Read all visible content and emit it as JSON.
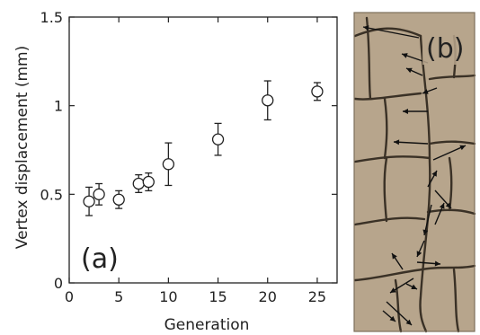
{
  "figure": {
    "panel_a_label": "(a)",
    "panel_b_label": "(b)",
    "photo_colors": {
      "background": "#b7a58c",
      "crack": "#3a3126",
      "frame": "#7d6e5b"
    }
  },
  "chart_data": {
    "type": "scatter",
    "title": "",
    "xlabel": "Generation",
    "ylabel": "Vertex displacement (mm)",
    "xlim": [
      0,
      27
    ],
    "ylim": [
      0,
      1.5
    ],
    "xticks": [
      0,
      5,
      10,
      15,
      20,
      25
    ],
    "yticks": [
      0,
      0.5,
      1,
      1.5
    ],
    "xtick_labels": [
      "0",
      "5",
      "10",
      "15",
      "20",
      "25"
    ],
    "ytick_labels": [
      "0",
      "0.5",
      "1",
      "1.5"
    ],
    "grid": false,
    "marker": "open-circle",
    "series": [
      {
        "x": [
          2,
          3,
          5,
          7,
          8,
          10,
          15,
          20,
          25
        ],
        "y": [
          0.46,
          0.5,
          0.47,
          0.56,
          0.57,
          0.67,
          0.81,
          1.03,
          1.08
        ],
        "err": [
          0.08,
          0.06,
          0.05,
          0.05,
          0.05,
          0.12,
          0.09,
          0.11,
          0.05
        ]
      }
    ]
  }
}
